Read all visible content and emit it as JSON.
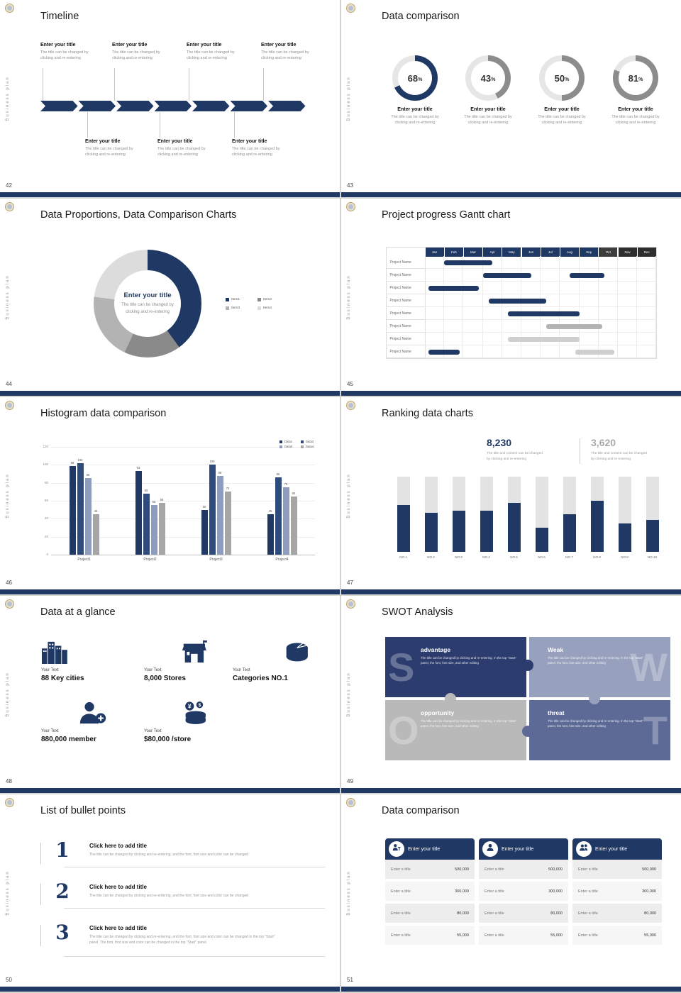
{
  "global": {
    "vertical_text": "Business plan",
    "accent_color": "#203864"
  },
  "slides": {
    "timeline": {
      "page": "42",
      "title": "Timeline",
      "years": [
        "2018",
        "2019",
        "2020",
        "2021",
        "2022",
        "2023",
        "2024"
      ],
      "top_entries": [
        {
          "title": "Enter your title",
          "desc": [
            "The title can be changed by",
            "clicking and re-entering"
          ]
        },
        {
          "title": "Enter your title",
          "desc": [
            "The title can be changed by",
            "clicking and re-entering"
          ]
        },
        {
          "title": "Enter your title",
          "desc": [
            "The title can be changed by",
            "clicking and re-entering"
          ]
        },
        {
          "title": "Enter your title",
          "desc": [
            "The title can be changed by",
            "clicking and re-entering"
          ]
        }
      ],
      "bottom_entries": [
        {
          "title": "Enter your title",
          "desc": [
            "The title can be changed by",
            "clicking and re-entering"
          ]
        },
        {
          "title": "Enter your title",
          "desc": [
            "The title can be changed by",
            "clicking and re-entering"
          ]
        },
        {
          "title": "Enter your title",
          "desc": [
            "The title can be changed by",
            "clicking and re-entering"
          ]
        }
      ]
    },
    "data_comparison": {
      "page": "43",
      "title": "Data comparison",
      "items": [
        {
          "value": 68,
          "unit": "%",
          "color": "#203864",
          "title": "Enter your title",
          "desc": [
            "The title can be changed by",
            "clicking and re-entering"
          ]
        },
        {
          "value": 43,
          "unit": "%",
          "color": "#8c8c8c",
          "title": "Enter your title",
          "desc": [
            "The title can be changed by",
            "clicking and re-entering"
          ]
        },
        {
          "value": 50,
          "unit": "%",
          "color": "#8c8c8c",
          "title": "Enter your title",
          "desc": [
            "The title can be changed by",
            "clicking and re-entering"
          ]
        },
        {
          "value": 81,
          "unit": "%",
          "color": "#8c8c8c",
          "title": "Enter your title",
          "desc": [
            "The title can be changed by",
            "clicking and re-entering"
          ]
        }
      ]
    },
    "proportions": {
      "page": "44",
      "title": "Data Proportions, Data Comparison Charts",
      "center_title": "Enter your title",
      "center_desc": [
        "The title can be changed by",
        "clicking and re-entering"
      ],
      "segments": [
        {
          "label": "Item1",
          "value": 40,
          "color": "#203864"
        },
        {
          "label": "Item2",
          "value": 17,
          "color": "#8a8a8a"
        },
        {
          "label": "Item3",
          "value": 20,
          "color": "#b3b3b3"
        },
        {
          "label": "Item4",
          "value": 23,
          "color": "#dcdcdc"
        }
      ]
    },
    "gantt": {
      "page": "45",
      "title": "Project progress Gantt chart",
      "months": [
        "Jan",
        "Feb",
        "Mar",
        "Apr",
        "May",
        "Jun",
        "Jul",
        "Aug",
        "Sep",
        "Oct",
        "Nov",
        "Dec"
      ],
      "month_colors": [
        "#203864",
        "#203864",
        "#203864",
        "#203864",
        "#203864",
        "#203864",
        "#203864",
        "#203864",
        "#203864",
        "#3d3d3d",
        "#2e2e2e",
        "#2e2e2e"
      ],
      "rows": [
        {
          "label": "Project Name",
          "bars": [
            {
              "start": 1.0,
              "end": 3.5,
              "color": "#203864"
            }
          ]
        },
        {
          "label": "Project Name",
          "bars": [
            {
              "start": 3.0,
              "end": 5.5,
              "color": "#203864"
            },
            {
              "start": 7.5,
              "end": 9.3,
              "color": "#203864"
            }
          ]
        },
        {
          "label": "Project Name",
          "bars": [
            {
              "start": 0.2,
              "end": 2.8,
              "color": "#203864"
            }
          ]
        },
        {
          "label": "Project Name",
          "bars": [
            {
              "start": 3.3,
              "end": 6.3,
              "color": "#203864"
            }
          ]
        },
        {
          "label": "Project Name",
          "bars": [
            {
              "start": 4.3,
              "end": 8.0,
              "color": "#203864"
            }
          ]
        },
        {
          "label": "Project Name",
          "bars": [
            {
              "start": 6.3,
              "end": 9.2,
              "color": "#b3b3b3"
            }
          ]
        },
        {
          "label": "Project Name",
          "bars": [
            {
              "start": 4.3,
              "end": 8.0,
              "color": "#cfcfcf"
            }
          ]
        },
        {
          "label": "Project Name",
          "bars": [
            {
              "start": 0.2,
              "end": 1.8,
              "color": "#203864"
            },
            {
              "start": 7.8,
              "end": 9.8,
              "color": "#cfcfcf"
            }
          ]
        }
      ]
    },
    "histogram": {
      "page": "46",
      "title": "Histogram data comparison",
      "categories": [
        "Project1",
        "Project2",
        "Project3",
        "Project4"
      ],
      "series": [
        {
          "name": "Data1",
          "color": "#203864",
          "values": [
            99,
            93,
            50,
            45
          ]
        },
        {
          "name": "Data2",
          "color": "#2f4a7c",
          "values": [
            102,
            68,
            100,
            86
          ]
        },
        {
          "name": "Data3",
          "color": "#8e9cbe",
          "values": [
            85,
            55,
            88,
            75
          ]
        },
        {
          "name": "Data4",
          "color": "#a6a6a6",
          "values": [
            45,
            58,
            70,
            65
          ]
        }
      ],
      "yticks": [
        0,
        20,
        40,
        60,
        80,
        100,
        120
      ]
    },
    "ranking": {
      "page": "47",
      "title": "Ranking data charts",
      "stats": [
        {
          "value": "8,230",
          "color": "#203864",
          "desc": [
            "The title and content can be changed",
            "by clicking and re-entering"
          ]
        },
        {
          "value": "3,620",
          "color": "#a9a9a9",
          "desc": [
            "The title and content can be changed",
            "by clicking and re-entering"
          ]
        }
      ],
      "categories": [
        "NO.1",
        "NO.2",
        "NO.3",
        "NO.4",
        "NO.5",
        "NO.6",
        "NO.7",
        "NO.8",
        "NO.9",
        "NO.10"
      ],
      "values": [
        62,
        52,
        55,
        55,
        65,
        32,
        50,
        68,
        38,
        42
      ]
    },
    "glance": {
      "page": "48",
      "title": "Data at a glance",
      "items": [
        {
          "icon": "city-icon",
          "label": "Your Text",
          "value": "88 Key cities"
        },
        {
          "icon": "store-icon",
          "label": "Your Text",
          "value": "8,000 Stores"
        },
        {
          "icon": "categories-icon",
          "label": "Your Text",
          "value": "Categories NO.1"
        },
        {
          "icon": "member-icon",
          "label": "Your Text",
          "value": "880,000 member"
        },
        {
          "icon": "money-icon",
          "label": "Your Text",
          "value": "$80,000 /store"
        }
      ]
    },
    "swot": {
      "page": "49",
      "title": "SWOT Analysis",
      "pieces": [
        {
          "letter": "S",
          "title": "advantage",
          "color": "#2c3c6e",
          "desc": "The title can be changed by clicking and re-entering. In the top \"Start\" panel, the font, font size, and other editing"
        },
        {
          "letter": "W",
          "title": "Weak",
          "color": "#97a0bd",
          "desc": "The title can be changed by clicking and re-entering. In the top \"Start\" panel, the font, font size, and other editing"
        },
        {
          "letter": "O",
          "title": "opportunity",
          "color": "#b9b9b9",
          "desc": "The title can be changed by clicking and re-entering. In the top \"Start\" panel, the font, font size, and other editing"
        },
        {
          "letter": "T",
          "title": "threat",
          "color": "#5d6a96",
          "desc": "The title can be changed by clicking and re-entering. In the top \"Start\" panel, the font, font size, and other editing"
        }
      ]
    },
    "bullets": {
      "page": "50",
      "title": "List of bullet points",
      "items": [
        {
          "num": "1",
          "title": "Click here to add title",
          "desc": [
            "The title can be changed by clicking and re-entering, and the font, font size and color can be changed"
          ]
        },
        {
          "num": "2",
          "title": "Click here to add title",
          "desc": [
            "The title can be changed by clicking and re-entering, and the font, font size and color can be changed"
          ]
        },
        {
          "num": "3",
          "title": "Click here to add title",
          "desc": [
            "The title can be changed by clicking and re-entering, and the font, font size and color can be changed in the top \"Start\"",
            "panel. The font, font size and color can be changed in the top \"Start\" panel."
          ]
        }
      ]
    },
    "cards": {
      "page": "51",
      "title": "Data comparison",
      "cards": [
        {
          "icon": "analyst-icon",
          "title": "Enter your title",
          "rows": [
            {
              "label": "Enter a title",
              "value": "500,000"
            },
            {
              "label": "Enter a title",
              "value": "300,000"
            },
            {
              "label": "Enter a title",
              "value": "80,000"
            },
            {
              "label": "Enter a title",
              "value": "55,000"
            }
          ]
        },
        {
          "icon": "person-icon",
          "title": "Enter your title",
          "rows": [
            {
              "label": "Enter a title",
              "value": "500,000"
            },
            {
              "label": "Enter a title",
              "value": "300,000"
            },
            {
              "label": "Enter a title",
              "value": "80,000"
            },
            {
              "label": "Enter a title",
              "value": "55,000"
            }
          ]
        },
        {
          "icon": "people-icon",
          "title": "Enter your title",
          "rows": [
            {
              "label": "Enter a title",
              "value": "500,000"
            },
            {
              "label": "Enter a title",
              "value": "300,000"
            },
            {
              "label": "Enter a title",
              "value": "80,000"
            },
            {
              "label": "Enter a title",
              "value": "55,000"
            }
          ]
        }
      ]
    }
  },
  "chart_data": [
    {
      "type": "pie",
      "title": "Data comparison",
      "labels": [
        "Enter your title",
        "Enter your title",
        "Enter your title",
        "Enter your title"
      ],
      "values": [
        68,
        43,
        50,
        81
      ],
      "unit": "%"
    },
    {
      "type": "pie",
      "title": "Data Proportions, Data Comparison Charts",
      "labels": [
        "Item1",
        "Item2",
        "Item3",
        "Item4"
      ],
      "values": [
        40,
        17,
        20,
        23
      ],
      "center_label": "Enter your title"
    },
    {
      "type": "table",
      "title": "Project progress Gantt chart",
      "columns": [
        "Jan",
        "Feb",
        "Mar",
        "Apr",
        "May",
        "Jun",
        "Jul",
        "Aug",
        "Sep",
        "Oct",
        "Nov",
        "Dec"
      ],
      "row_label": "Project Name",
      "bars_month_spans": [
        [
          [
            1.0,
            3.5
          ]
        ],
        [
          [
            3.0,
            5.5
          ],
          [
            7.5,
            9.3
          ]
        ],
        [
          [
            0.2,
            2.8
          ]
        ],
        [
          [
            3.3,
            6.3
          ]
        ],
        [
          [
            4.3,
            8.0
          ]
        ],
        [
          [
            6.3,
            9.2
          ]
        ],
        [
          [
            4.3,
            8.0
          ]
        ],
        [
          [
            0.2,
            1.8
          ],
          [
            7.8,
            9.8
          ]
        ]
      ]
    },
    {
      "type": "bar",
      "title": "Histogram data comparison",
      "categories": [
        "Project1",
        "Project2",
        "Project3",
        "Project4"
      ],
      "series": [
        {
          "name": "Data1",
          "values": [
            99,
            93,
            50,
            45
          ]
        },
        {
          "name": "Data2",
          "values": [
            102,
            68,
            100,
            86
          ]
        },
        {
          "name": "Data3",
          "values": [
            85,
            55,
            88,
            75
          ]
        },
        {
          "name": "Data4",
          "values": [
            45,
            58,
            70,
            65
          ]
        }
      ],
      "ylim": [
        0,
        120
      ]
    },
    {
      "type": "bar",
      "title": "Ranking data charts",
      "categories": [
        "NO.1",
        "NO.2",
        "NO.3",
        "NO.4",
        "NO.5",
        "NO.6",
        "NO.7",
        "NO.8",
        "NO.9",
        "NO.10"
      ],
      "values": [
        62,
        52,
        55,
        55,
        65,
        32,
        50,
        68,
        38,
        42
      ],
      "ylim": [
        0,
        100
      ],
      "annotations": [
        "8,230",
        "3,620"
      ]
    }
  ]
}
